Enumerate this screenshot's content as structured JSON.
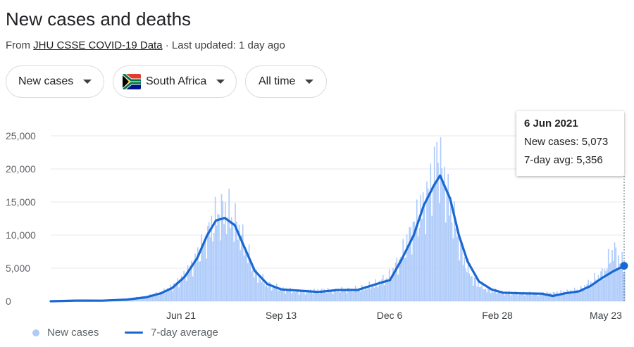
{
  "header": {
    "title": "New cases and deaths",
    "source_prefix": "From ",
    "source_link": "JHU CSSE COVID-19 Data",
    "source_suffix": " · Last updated: 1 day ago"
  },
  "filters": {
    "metric": "New cases",
    "location": "South Africa",
    "range": "All time"
  },
  "tooltip": {
    "date": "6 Jun 2021",
    "new_cases": "New cases: 5,073",
    "avg": "7-day avg: 5,356"
  },
  "legend": {
    "bars": "New cases",
    "line": "7-day average"
  },
  "colors": {
    "bars": "#aecbfa",
    "line": "#1967d2",
    "grid": "#e8eaed"
  },
  "chart_data": {
    "type": "bar",
    "x_ticks": [
      "Jun 21",
      "Sep 13",
      "Dec 6",
      "Feb 28",
      "May 23"
    ],
    "y_ticks": [
      "25,000",
      "20,000",
      "15,000",
      "10,000",
      "5,000",
      "0"
    ],
    "ylim": [
      0,
      25000
    ],
    "x_range": [
      "2020-03-05",
      "2021-06-06"
    ],
    "series": [
      {
        "name": "New cases",
        "type": "bar",
        "points": [
          [
            "2020-03-05",
            0
          ],
          [
            "2020-03-20",
            50
          ],
          [
            "2020-04-05",
            120
          ],
          [
            "2020-04-20",
            150
          ],
          [
            "2020-05-05",
            350
          ],
          [
            "2020-05-20",
            700
          ],
          [
            "2020-06-01",
            1300
          ],
          [
            "2020-06-10",
            2200
          ],
          [
            "2020-06-20",
            3900
          ],
          [
            "2020-06-30",
            6800
          ],
          [
            "2020-07-10",
            10800
          ],
          [
            "2020-07-15",
            12500
          ],
          [
            "2020-07-20",
            13500
          ],
          [
            "2020-07-25",
            13000
          ],
          [
            "2020-08-01",
            11000
          ],
          [
            "2020-08-08",
            7500
          ],
          [
            "2020-08-15",
            4000
          ],
          [
            "2020-08-25",
            2500
          ],
          [
            "2020-09-05",
            1800
          ],
          [
            "2020-09-20",
            1400
          ],
          [
            "2020-10-05",
            1600
          ],
          [
            "2020-10-20",
            1600
          ],
          [
            "2020-11-05",
            1800
          ],
          [
            "2020-11-20",
            2600
          ],
          [
            "2020-12-01",
            3800
          ],
          [
            "2020-12-10",
            6800
          ],
          [
            "2020-12-20",
            11500
          ],
          [
            "2020-12-28",
            14500
          ],
          [
            "2021-01-05",
            19000
          ],
          [
            "2021-01-08",
            21900
          ],
          [
            "2021-01-12",
            18500
          ],
          [
            "2021-01-20",
            12500
          ],
          [
            "2021-01-28",
            6500
          ],
          [
            "2021-02-05",
            3200
          ],
          [
            "2021-02-15",
            1800
          ],
          [
            "2021-03-01",
            1200
          ],
          [
            "2021-03-15",
            1200
          ],
          [
            "2021-04-01",
            1100
          ],
          [
            "2021-04-15",
            1300
          ],
          [
            "2021-05-01",
            1700
          ],
          [
            "2021-05-10",
            2800
          ],
          [
            "2021-05-20",
            4200
          ],
          [
            "2021-05-28",
            7600
          ],
          [
            "2021-06-06",
            5073
          ]
        ]
      },
      {
        "name": "7-day average",
        "type": "line",
        "points": [
          [
            "2020-03-05",
            0
          ],
          [
            "2020-03-25",
            100
          ],
          [
            "2020-04-15",
            80
          ],
          [
            "2020-05-05",
            250
          ],
          [
            "2020-05-20",
            600
          ],
          [
            "2020-06-01",
            1200
          ],
          [
            "2020-06-10",
            2000
          ],
          [
            "2020-06-20",
            3700
          ],
          [
            "2020-06-30",
            6500
          ],
          [
            "2020-07-08",
            10000
          ],
          [
            "2020-07-15",
            12200
          ],
          [
            "2020-07-22",
            12600
          ],
          [
            "2020-07-30",
            11500
          ],
          [
            "2020-08-08",
            7600
          ],
          [
            "2020-08-15",
            4600
          ],
          [
            "2020-08-25",
            2600
          ],
          [
            "2020-09-05",
            1800
          ],
          [
            "2020-09-20",
            1600
          ],
          [
            "2020-10-05",
            1400
          ],
          [
            "2020-10-20",
            1700
          ],
          [
            "2020-11-05",
            1700
          ],
          [
            "2020-11-20",
            2600
          ],
          [
            "2020-12-01",
            3200
          ],
          [
            "2020-12-10",
            6200
          ],
          [
            "2020-12-20",
            10000
          ],
          [
            "2020-12-28",
            14500
          ],
          [
            "2021-01-05",
            17500
          ],
          [
            "2021-01-10",
            19000
          ],
          [
            "2021-01-18",
            15500
          ],
          [
            "2021-01-25",
            10000
          ],
          [
            "2021-02-01",
            6000
          ],
          [
            "2021-02-10",
            3000
          ],
          [
            "2021-02-20",
            1800
          ],
          [
            "2021-03-01",
            1300
          ],
          [
            "2021-03-15",
            1200
          ],
          [
            "2021-04-01",
            1150
          ],
          [
            "2021-04-10",
            800
          ],
          [
            "2021-04-20",
            1200
          ],
          [
            "2021-05-01",
            1500
          ],
          [
            "2021-05-10",
            2300
          ],
          [
            "2021-05-20",
            3600
          ],
          [
            "2021-05-28",
            4500
          ],
          [
            "2021-06-06",
            5356
          ]
        ]
      }
    ]
  }
}
